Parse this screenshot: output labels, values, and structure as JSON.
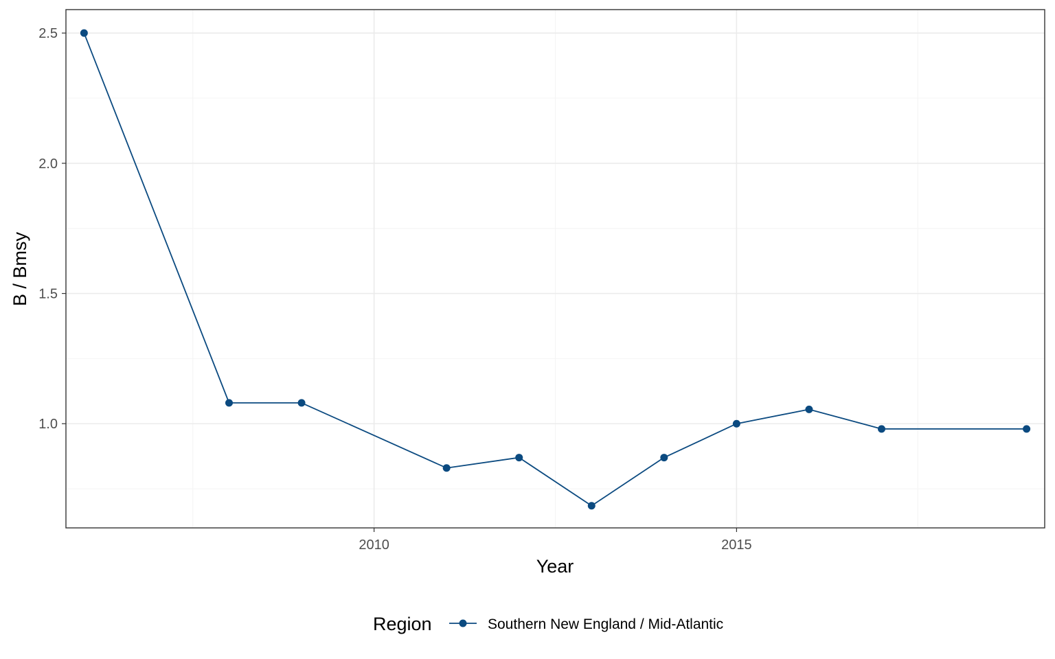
{
  "chart_data": {
    "type": "line",
    "xlabel": "Year",
    "ylabel": "B / Bmsy",
    "xlim": [
      2005.75,
      2019.25
    ],
    "ylim": [
      0.6,
      2.59
    ],
    "x_ticks": [
      2010,
      2015
    ],
    "x_tick_labels": [
      "2010",
      "2015"
    ],
    "y_ticks": [
      1.0,
      1.5,
      2.0,
      2.5
    ],
    "y_tick_labels": [
      "1.0",
      "1.5",
      "2.0",
      "2.5"
    ],
    "grid": true,
    "legend": {
      "title": "Region",
      "position": "bottom"
    },
    "series": [
      {
        "name": "Southern New England / Mid-Atlantic",
        "color": "#0b4a80",
        "x": [
          2006,
          2008,
          2009,
          2011,
          2012,
          2013,
          2014,
          2015,
          2016,
          2017,
          2019
        ],
        "y": [
          2.5,
          1.08,
          1.08,
          0.83,
          0.87,
          0.685,
          0.87,
          1.0,
          1.055,
          0.98,
          0.98
        ]
      }
    ]
  }
}
